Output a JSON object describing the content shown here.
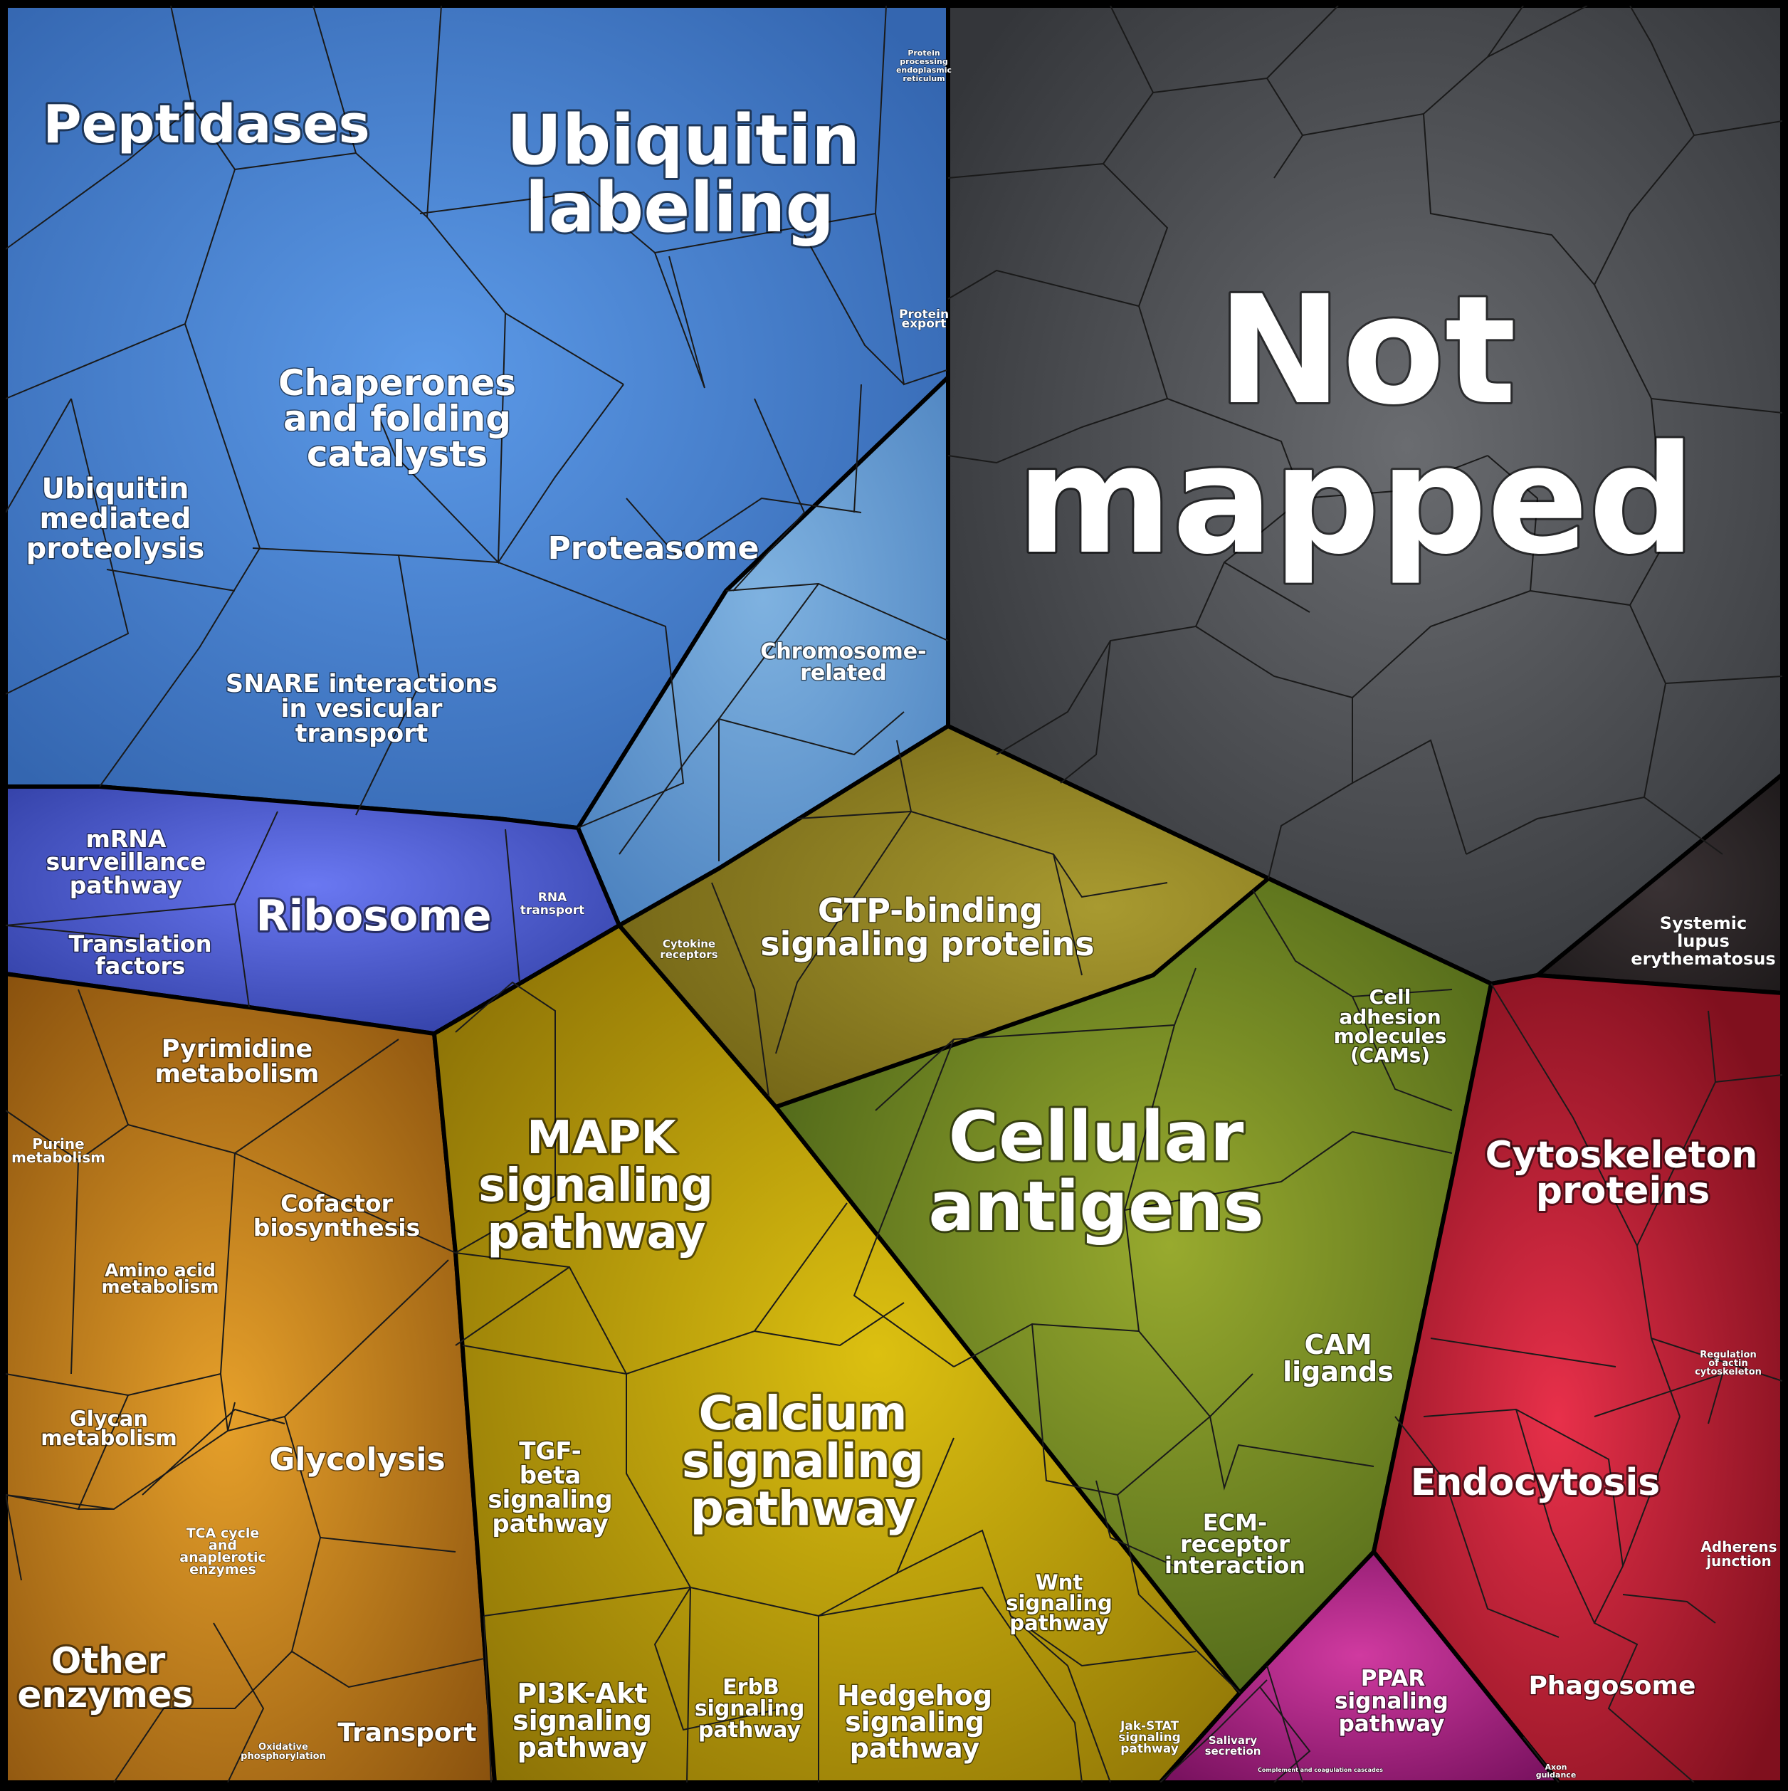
{
  "regions": {
    "not_mapped": {
      "label": [
        "Not",
        "mapped"
      ],
      "color": "#45474c"
    },
    "protein_processing": {
      "label": [
        "Peptidases",
        "Ubiquitin",
        "labeling"
      ],
      "color": "#3d70b8"
    },
    "translation": {
      "color": "#3f50b8"
    },
    "metabolism": {
      "color": "#a8641a"
    },
    "signaling": {
      "color": "#b0950a"
    },
    "antigens": {
      "color": "#6f8a22"
    },
    "cytoskeleton": {
      "color": "#c01830"
    },
    "lupus": {
      "color": "#2b2426"
    },
    "ppar": {
      "color": "#b0208a"
    }
  },
  "labels": {
    "peptidases": "Peptidases",
    "ubiquitin_labeling_1": "Ubiquitin",
    "ubiquitin_labeling_2": "labeling",
    "protein_processing_1": "Protein",
    "protein_processing_2": "processing",
    "protein_processing_3": "in",
    "protein_processing_4": "endoplasmic",
    "protein_processing_5": "reticulum",
    "protein_export_1": "Protein",
    "protein_export_2": "export",
    "chaperones_1": "Chaperones",
    "chaperones_2": "and folding",
    "chaperones_3": "catalysts",
    "ubiq_med_1": "Ubiquitin",
    "ubiq_med_2": "mediated",
    "ubiq_med_3": "proteolysis",
    "proteasome": "Proteasome",
    "snare_1": "SNARE interactions",
    "snare_2": "in vesicular",
    "snare_3": "transport",
    "chromosome_1": "Chromosome-",
    "chromosome_2": "related",
    "not_mapped_1": "Not",
    "not_mapped_2": "mapped",
    "mrna_1": "mRNA",
    "mrna_2": "surveillance",
    "mrna_3": "pathway",
    "ribosome": "Ribosome",
    "rna_transport_1": "RNA",
    "rna_transport_2": "transport",
    "translation_1": "Translation",
    "translation_2": "factors",
    "gtp_1": "GTP-binding",
    "gtp_2": "signaling proteins",
    "cytokine_1": "Cytokine",
    "cytokine_2": "receptors",
    "systemic_1": "Systemic",
    "systemic_2": "lupus",
    "systemic_3": "erythematosus",
    "cell_adhesion_1": "Cell",
    "cell_adhesion_2": "adhesion",
    "cell_adhesion_3": "molecules",
    "cell_adhesion_4": "(CAMs)",
    "pyrimidine_1": "Pyrimidine",
    "pyrimidine_2": "metabolism",
    "purine_1": "Purine",
    "purine_2": "metabolism",
    "mapk_1": "MAPK",
    "mapk_2": "signaling",
    "mapk_3": "pathway",
    "cellular_1": "Cellular",
    "cellular_2": "antigens",
    "cytoskeleton_1": "Cytoskeleton",
    "cytoskeleton_2": "proteins",
    "cofactor_1": "Cofactor",
    "cofactor_2": "biosynthesis",
    "amino_1": "Amino acid",
    "amino_2": "metabolism",
    "cam_ligands_1": "CAM",
    "cam_ligands_2": "ligands",
    "reg_actin_1": "Regulation",
    "reg_actin_2": "of actin",
    "reg_actin_3": "cytoskeleton",
    "glycan_1": "Glycan",
    "glycan_2": "metabolism",
    "glycolysis": "Glycolysis",
    "tgf_1": "TGF-",
    "tgf_2": "beta",
    "tgf_3": "signaling",
    "tgf_4": "pathway",
    "calcium_1": "Calcium",
    "calcium_2": "signaling",
    "calcium_3": "pathway",
    "endocytosis": "Endocytosis",
    "ecm_1": "ECM-",
    "ecm_2": "receptor",
    "ecm_3": "interaction",
    "tca_1": "TCA cycle",
    "tca_2": "and",
    "tca_3": "anaplerotic",
    "tca_4": "enzymes",
    "adherens_1": "Adherens",
    "adherens_2": "junction",
    "wnt_1": "Wnt",
    "wnt_2": "signaling",
    "wnt_3": "pathway",
    "other_1": "Other",
    "other_2": "enzymes",
    "pi3k_1": "PI3K-Akt",
    "pi3k_2": "signaling",
    "pi3k_3": "pathway",
    "erbb_1": "ErbB",
    "erbb_2": "signaling",
    "erbb_3": "pathway",
    "hedgehog_1": "Hedgehog",
    "hedgehog_2": "signaling",
    "hedgehog_3": "pathway",
    "ppar_1": "PPAR",
    "ppar_2": "signaling",
    "ppar_3": "pathway",
    "phagosome": "Phagosome",
    "jak_1": "Jak-STAT",
    "jak_2": "signaling",
    "jak_3": "pathway",
    "salivary_1": "Salivary",
    "salivary_2": "secretion",
    "complement": "Complement and coagulation cascades",
    "axon_1": "Axon",
    "axon_2": "guidance",
    "oxidative_1": "Oxidative",
    "oxidative_2": "phosphorylation",
    "transport": "Transport"
  }
}
